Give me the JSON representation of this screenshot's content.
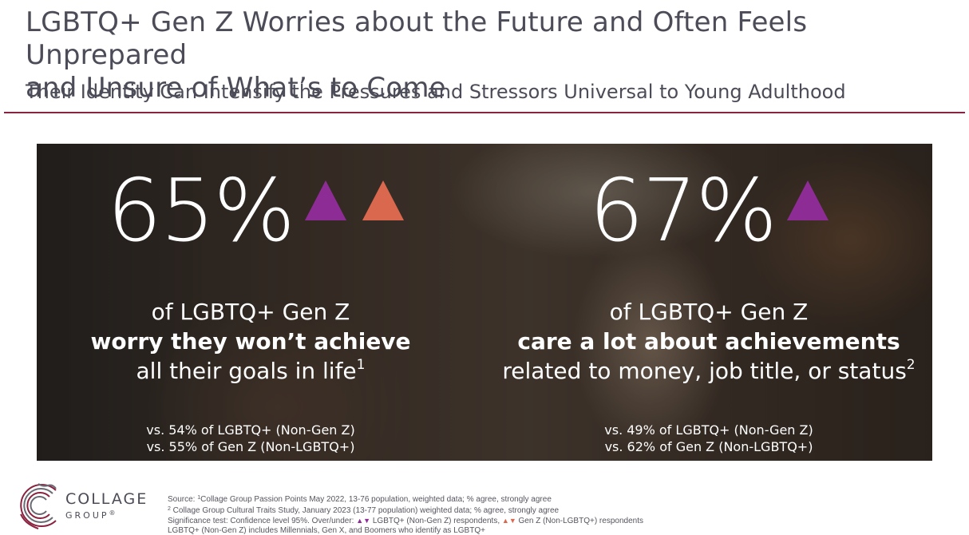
{
  "title": {
    "line1": "LGBTQ+ Gen Z Worries about the Future and Often Feels Unprepared",
    "line2": "and Unsure of What’s to Come"
  },
  "subtitle": "Their Identity Can Intensify the Pressures and Stressors Universal to Young Adulthood",
  "colors": {
    "rule": "#8a2340",
    "over_lgbtq_non_genz": "#8e2c96",
    "over_genz_non_lgbtq": "#d9684e"
  },
  "stats": [
    {
      "value": "65%",
      "line1": "of  LGBTQ+ Gen Z",
      "line2_bold": "worry they won’t achieve",
      "line3": "all their goals in life",
      "footnote": "1",
      "vs1": "vs. 54% of LGBTQ+ (Non-Gen Z)",
      "vs2": "vs. 55% of Gen Z (Non-LGBTQ+)",
      "indicators": [
        "up-purple-icon",
        "up-orange-icon"
      ]
    },
    {
      "value": "67%",
      "line1": "of LGBTQ+ Gen Z",
      "line2_bold": "care a lot about achievements",
      "line3": "related to money, job title, or status",
      "footnote": "2",
      "vs1": "vs. 49% of LGBTQ+ (Non-Gen Z)",
      "vs2": "vs. 62% of Gen Z (Non-LGBTQ+)",
      "indicators": [
        "up-purple-icon"
      ]
    }
  ],
  "logo": {
    "word": "COLLAGE",
    "sub": "GROUP",
    "mark": "®"
  },
  "footnotes": {
    "source1_prefix": "Source: ",
    "source1_num": "1",
    "source1_text": "Collage Group Passion Points May 2022, 13-76 population, weighted data; % agree, strongly agree",
    "source2_num": "2",
    "source2_text": " Collage Group Cultural Traits Study, January 2023 (13-77 population) weighted data; % agree, strongly agree",
    "sig_prefix": "Significance test: Confidence level 95%. Over/under: ",
    "sig_mid": " LGBTQ+ (Non-Gen Z) respondents, ",
    "sig_end": " Gen Z (Non-LGBTQ+) respondents",
    "def": "LGBTQ+ (Non-Gen Z) includes Millennials, Gen X, and Boomers who identify as LGBTQ+",
    "up_glyph": "▲",
    "down_glyph": "▼"
  }
}
